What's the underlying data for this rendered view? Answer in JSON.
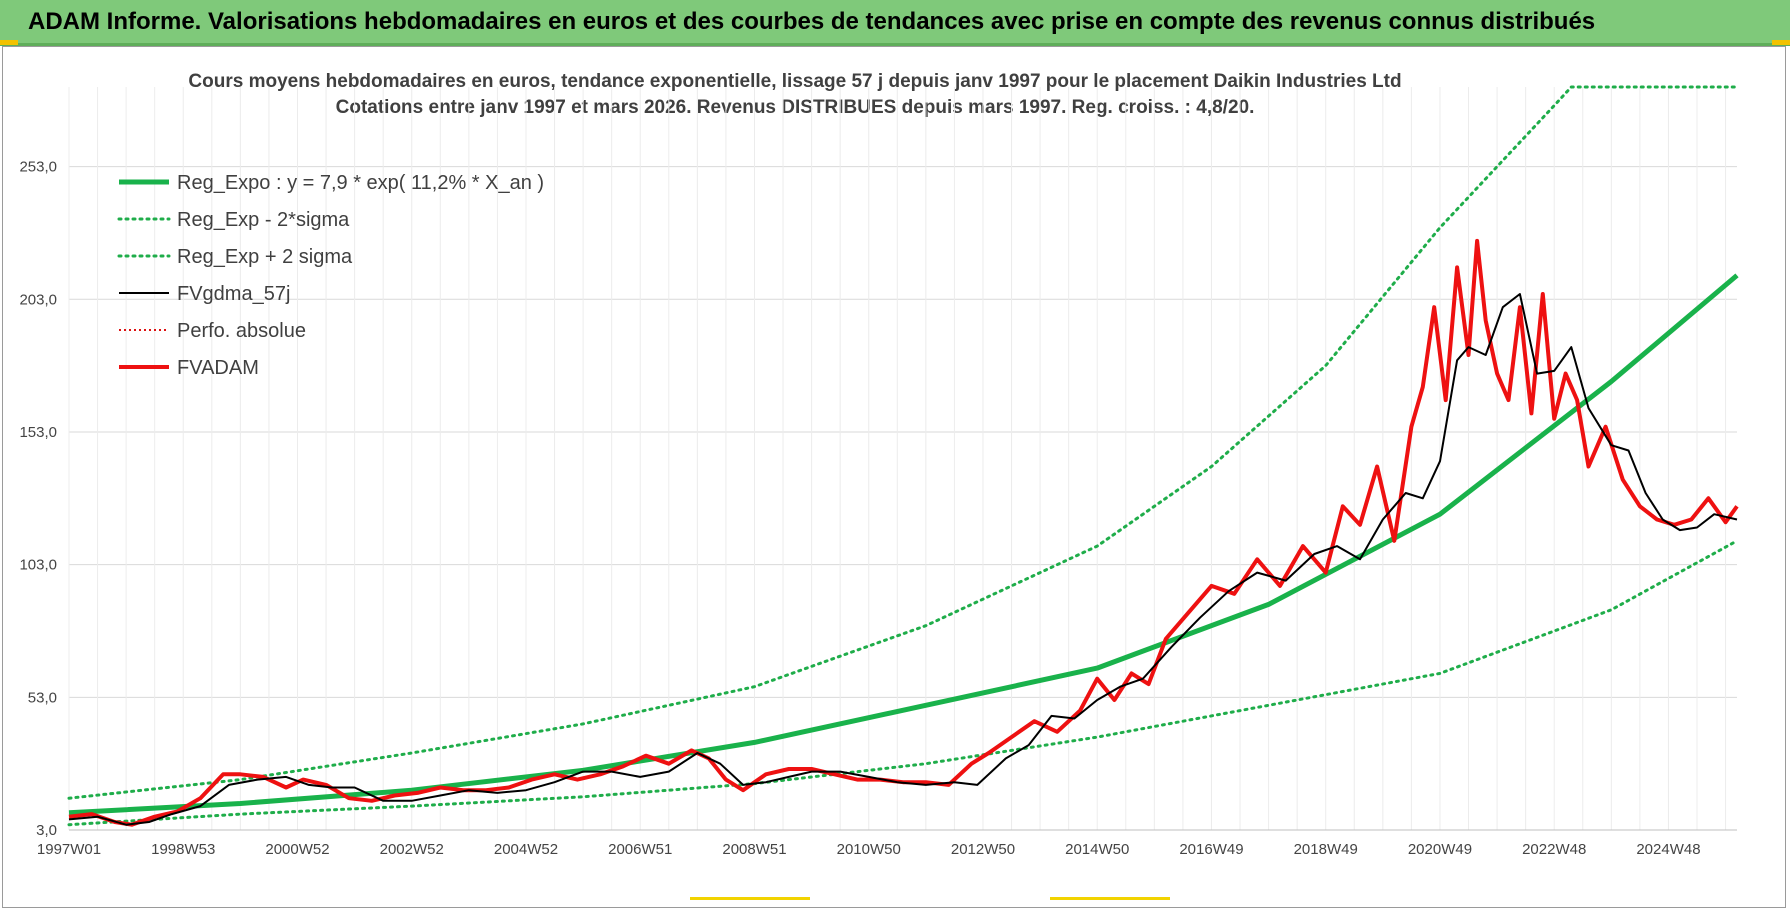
{
  "banner": {
    "text": "ADAM Informe. Valorisations hebdomadaires en euros et des courbes de tendances avec prise en compte des revenus connus distribués"
  },
  "colors": {
    "banner_bg": "#7fc97a",
    "reg_green": "#19b24b",
    "dotted_green": "#1fad4a",
    "fv_black": "#000000",
    "fvadam_red": "#ee1111",
    "perfo_red": "#dd1111",
    "grid": "#d9d9d9"
  },
  "chart_data": {
    "type": "line",
    "title_line1": "Cours moyens hebdomadaires en euros, tendance exponentielle, lissage 57 j depuis janv 1997 pour le placement Daikin Industries Ltd",
    "title_line2": "Cotations entre janv 1997 et mars 2026. Revenus DISTRIBUES depuis mars 1997. Reg. croiss. : 4,8/20.",
    "x_ticks": [
      "1997W01",
      "1998W53",
      "2000W52",
      "2002W52",
      "2004W52",
      "2006W51",
      "2008W51",
      "2010W50",
      "2012W50",
      "2014W50",
      "2016W49",
      "2018W49",
      "2020W49",
      "2022W48",
      "2024W48"
    ],
    "x_tick_years": [
      1997.0,
      1999.0,
      2001.0,
      2003.0,
      2005.0,
      2007.0,
      2009.0,
      2011.0,
      2013.0,
      2015.0,
      2017.0,
      2019.0,
      2021.0,
      2023.0,
      2025.0
    ],
    "xlim": [
      1997.0,
      2026.2
    ],
    "y_ticks": [
      "3,0",
      "53,0",
      "103,0",
      "153,0",
      "203,0",
      "253,0"
    ],
    "y_tick_values": [
      3,
      53,
      103,
      153,
      203,
      253
    ],
    "ylim": [
      3,
      283
    ],
    "grid": true,
    "legend_position": "top-left",
    "legend": [
      {
        "key": "reg",
        "label": "Reg_Expo : y = 7,9 * exp( 11,2% *  X_an )"
      },
      {
        "key": "lower",
        "label": "Reg_Exp - 2*sigma"
      },
      {
        "key": "upper",
        "label": "Reg_Exp + 2 sigma"
      },
      {
        "key": "fv57",
        "label": "FVgdma_57j"
      },
      {
        "key": "perfo",
        "label": "Perfo. absolue"
      },
      {
        "key": "fvadam",
        "label": "FVADAM"
      }
    ],
    "series": [
      {
        "key": "reg",
        "name": "Reg_Expo",
        "x": [
          1997.0,
          2000.0,
          2003.0,
          2006.0,
          2009.0,
          2012.0,
          2015.0,
          2018.0,
          2021.0,
          2024.0,
          2026.2
        ],
        "y": [
          9.5,
          13.0,
          18.0,
          25.5,
          36.0,
          50.0,
          64.0,
          88.0,
          122.0,
          172.0,
          212.0
        ]
      },
      {
        "key": "lower",
        "name": "Reg_Exp - 2*sigma",
        "x": [
          1997.0,
          2000.0,
          2003.0,
          2006.0,
          2009.0,
          2012.0,
          2015.0,
          2018.0,
          2021.0,
          2024.0,
          2026.2
        ],
        "y": [
          5.0,
          9.0,
          12.0,
          15.5,
          20.5,
          28.0,
          38.0,
          50.0,
          62.0,
          86.0,
          112.0
        ]
      },
      {
        "key": "upper",
        "name": "Reg_Exp + 2 sigma",
        "x": [
          1997.0,
          2000.0,
          2003.0,
          2006.0,
          2009.0,
          2012.0,
          2015.0,
          2017.0,
          2019.0,
          2021.0,
          2023.0,
          2023.3,
          2026.2
        ],
        "y": [
          15.0,
          22.0,
          32.0,
          43.0,
          57.0,
          80.0,
          110.0,
          140.0,
          178.0,
          230.0,
          276.0,
          283.0,
          283.0
        ]
      },
      {
        "key": "fv57",
        "name": "FVgdma_57j",
        "x": [
          1997.0,
          1997.5,
          1998.0,
          1998.4,
          1998.8,
          1999.3,
          1999.8,
          2000.3,
          2000.8,
          2001.2,
          2001.6,
          2002.0,
          2002.5,
          2003.0,
          2003.5,
          2004.0,
          2004.5,
          2005.0,
          2005.5,
          2006.0,
          2006.5,
          2007.0,
          2007.5,
          2008.0,
          2008.4,
          2008.8,
          2009.2,
          2009.6,
          2010.0,
          2010.5,
          2011.0,
          2011.5,
          2012.0,
          2012.5,
          2012.9,
          2013.4,
          2013.8,
          2014.2,
          2014.6,
          2015.0,
          2015.4,
          2015.8,
          2016.3,
          2016.8,
          2017.3,
          2017.8,
          2018.3,
          2018.8,
          2019.2,
          2019.6,
          2020.0,
          2020.4,
          2020.7,
          2021.0,
          2021.3,
          2021.5,
          2021.8,
          2022.1,
          2022.4,
          2022.7,
          2023.0,
          2023.3,
          2023.6,
          2024.0,
          2024.3,
          2024.6,
          2024.9,
          2025.2,
          2025.5,
          2025.8,
          2026.2
        ],
        "y": [
          7,
          8,
          5,
          6,
          9,
          12,
          20,
          22,
          23,
          20,
          19,
          19,
          14,
          14,
          16,
          18,
          17,
          18,
          21,
          25,
          25,
          23,
          25,
          32,
          28,
          20,
          21,
          23,
          25,
          25,
          23,
          21,
          20,
          21,
          20,
          30,
          35,
          46,
          45,
          52,
          57,
          60,
          72,
          83,
          93,
          100,
          97,
          107,
          110,
          105,
          120,
          130,
          128,
          142,
          180,
          185,
          182,
          200,
          205,
          175,
          176,
          185,
          162,
          148,
          146,
          130,
          120,
          116,
          117,
          122,
          120
        ]
      },
      {
        "key": "fvadam",
        "name": "FVADAM",
        "x": [
          1997.0,
          1997.4,
          1997.8,
          1998.1,
          1998.5,
          1998.9,
          1999.3,
          1999.7,
          2000.0,
          2000.4,
          2000.8,
          2001.1,
          2001.5,
          2001.9,
          2002.3,
          2002.7,
          2003.1,
          2003.5,
          2003.9,
          2004.3,
          2004.7,
          2005.1,
          2005.5,
          2005.9,
          2006.3,
          2006.7,
          2007.1,
          2007.5,
          2007.9,
          2008.2,
          2008.5,
          2008.8,
          2009.2,
          2009.6,
          2010.0,
          2010.4,
          2010.8,
          2011.2,
          2011.6,
          2012.0,
          2012.4,
          2012.8,
          2013.1,
          2013.5,
          2013.9,
          2014.3,
          2014.7,
          2015.0,
          2015.3,
          2015.6,
          2015.9,
          2016.2,
          2016.6,
          2017.0,
          2017.4,
          2017.8,
          2018.2,
          2018.6,
          2019.0,
          2019.3,
          2019.6,
          2019.9,
          2020.2,
          2020.5,
          2020.7,
          2020.9,
          2021.1,
          2021.3,
          2021.5,
          2021.65,
          2021.8,
          2022.0,
          2022.2,
          2022.4,
          2022.6,
          2022.8,
          2023.0,
          2023.2,
          2023.4,
          2023.6,
          2023.9,
          2024.2,
          2024.5,
          2024.8,
          2025.1,
          2025.4,
          2025.7,
          2026.0,
          2026.2
        ],
        "y": [
          8,
          9,
          6,
          5,
          8,
          10,
          15,
          24,
          24,
          23,
          19,
          22,
          20,
          15,
          14,
          16,
          17,
          19,
          18,
          18,
          19,
          22,
          24,
          22,
          24,
          27,
          31,
          28,
          33,
          30,
          22,
          18,
          24,
          26,
          26,
          24,
          22,
          22,
          21,
          21,
          20,
          28,
          32,
          38,
          44,
          40,
          48,
          60,
          52,
          62,
          58,
          75,
          85,
          95,
          92,
          105,
          95,
          110,
          100,
          125,
          118,
          140,
          112,
          155,
          170,
          200,
          165,
          215,
          182,
          225,
          195,
          175,
          165,
          200,
          160,
          205,
          158,
          175,
          165,
          140,
          155,
          135,
          125,
          120,
          118,
          120,
          128,
          119,
          125
        ]
      }
    ]
  }
}
